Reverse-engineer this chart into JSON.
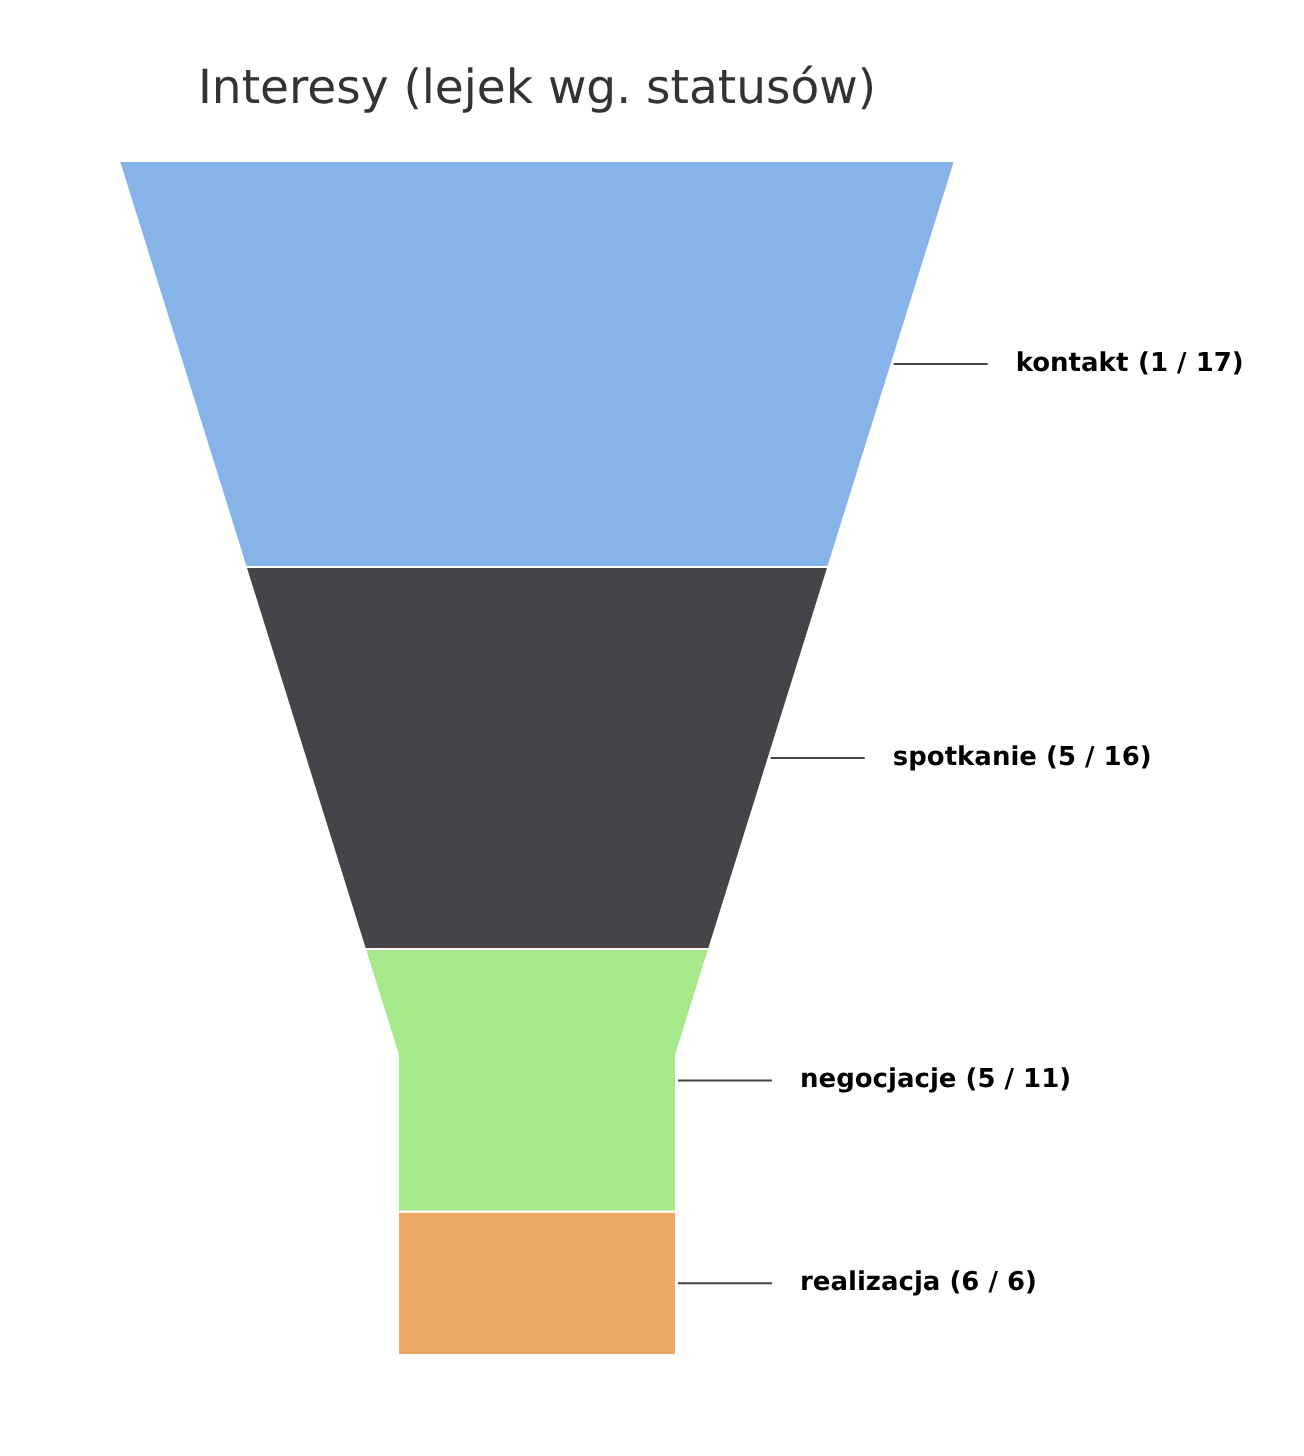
{
  "chart_data": {
    "type": "other",
    "title": "Interesy (lejek wg. statusów)",
    "categories": [
      "kontakt",
      "spotkanie",
      "negocjacje",
      "realizacja"
    ],
    "values": [
      17,
      16,
      11,
      6
    ],
    "value_labels": [
      "(1 / 17)",
      "(5 / 16)",
      "(5 / 11)",
      "(6 / 6)"
    ],
    "colors": [
      "#86b4e8",
      "#444449",
      "#a6e98a",
      "#eda868"
    ]
  }
}
